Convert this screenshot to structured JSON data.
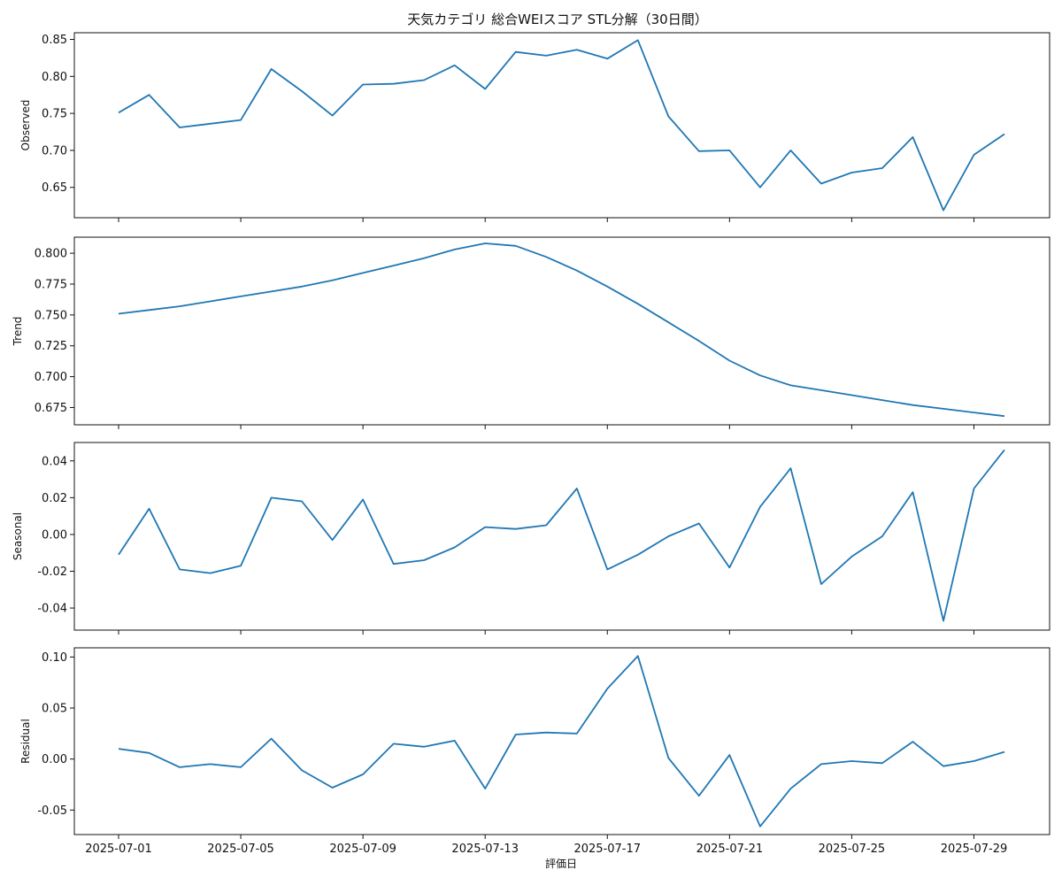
{
  "chart_data": {
    "type": "line",
    "title": "天気カテゴリ 総合WEIスコア STL分解（30日間）",
    "xlabel": "評価日",
    "x_tick_labels": [
      "2025-07-01",
      "2025-07-05",
      "2025-07-09",
      "2025-07-13",
      "2025-07-17",
      "2025-07-21",
      "2025-07-25",
      "2025-07-29"
    ],
    "x": [
      "2025-07-01",
      "2025-07-02",
      "2025-07-03",
      "2025-07-04",
      "2025-07-05",
      "2025-07-06",
      "2025-07-07",
      "2025-07-08",
      "2025-07-09",
      "2025-07-10",
      "2025-07-11",
      "2025-07-12",
      "2025-07-13",
      "2025-07-14",
      "2025-07-15",
      "2025-07-16",
      "2025-07-17",
      "2025-07-18",
      "2025-07-19",
      "2025-07-20",
      "2025-07-21",
      "2025-07-22",
      "2025-07-23",
      "2025-07-24",
      "2025-07-25",
      "2025-07-26",
      "2025-07-27",
      "2025-07-28",
      "2025-07-29",
      "2025-07-30"
    ],
    "panels": [
      {
        "ylabel": "Observed",
        "ylim": [
          0.609,
          0.859
        ],
        "yticks": [
          0.65,
          0.7,
          0.75,
          0.8,
          0.85
        ],
        "ytick_labels": [
          "0.65",
          "0.70",
          "0.75",
          "0.80",
          "0.85"
        ],
        "values": [
          0.751,
          0.775,
          0.731,
          0.736,
          0.741,
          0.81,
          0.78,
          0.747,
          0.789,
          0.79,
          0.795,
          0.815,
          0.783,
          0.833,
          0.828,
          0.836,
          0.824,
          0.849,
          0.746,
          0.699,
          0.7,
          0.65,
          0.7,
          0.655,
          0.67,
          0.676,
          0.718,
          0.619,
          0.694,
          0.722
        ]
      },
      {
        "ylabel": "Trend",
        "ylim": [
          0.661,
          0.813
        ],
        "yticks": [
          0.675,
          0.7,
          0.725,
          0.75,
          0.775,
          0.8
        ],
        "ytick_labels": [
          "0.675",
          "0.700",
          "0.725",
          "0.750",
          "0.775",
          "0.800"
        ],
        "values": [
          0.751,
          0.754,
          0.757,
          0.761,
          0.765,
          0.769,
          0.773,
          0.778,
          0.784,
          0.79,
          0.796,
          0.803,
          0.808,
          0.806,
          0.797,
          0.786,
          0.773,
          0.759,
          0.744,
          0.729,
          0.713,
          0.701,
          0.693,
          0.689,
          0.685,
          0.681,
          0.677,
          0.674,
          0.671,
          0.668
        ]
      },
      {
        "ylabel": "Seasonal",
        "ylim": [
          -0.052,
          0.05
        ],
        "yticks": [
          -0.04,
          -0.02,
          0.0,
          0.02,
          0.04
        ],
        "ytick_labels": [
          "-0.04",
          "-0.02",
          "0.00",
          "0.02",
          "0.04"
        ],
        "values": [
          -0.011,
          0.014,
          -0.019,
          -0.021,
          -0.017,
          0.02,
          0.018,
          -0.003,
          0.019,
          -0.016,
          -0.014,
          -0.007,
          0.004,
          0.003,
          0.005,
          0.025,
          -0.019,
          -0.011,
          -0.001,
          0.006,
          -0.018,
          0.015,
          0.036,
          -0.027,
          -0.012,
          -0.001,
          0.023,
          -0.047,
          0.025,
          0.046
        ]
      },
      {
        "ylabel": "Residual",
        "ylim": [
          -0.074,
          0.109
        ],
        "yticks": [
          -0.05,
          0.0,
          0.05,
          0.1
        ],
        "ytick_labels": [
          "-0.05",
          "0.00",
          "0.05",
          "0.10"
        ],
        "values": [
          0.01,
          0.006,
          -0.008,
          -0.005,
          -0.008,
          0.02,
          -0.011,
          -0.028,
          -0.015,
          0.015,
          0.012,
          0.018,
          -0.029,
          0.024,
          0.026,
          0.025,
          0.069,
          0.101,
          0.001,
          -0.036,
          0.004,
          -0.066,
          -0.029,
          -0.005,
          -0.002,
          -0.004,
          0.017,
          -0.007,
          -0.002,
          0.007
        ]
      }
    ]
  }
}
